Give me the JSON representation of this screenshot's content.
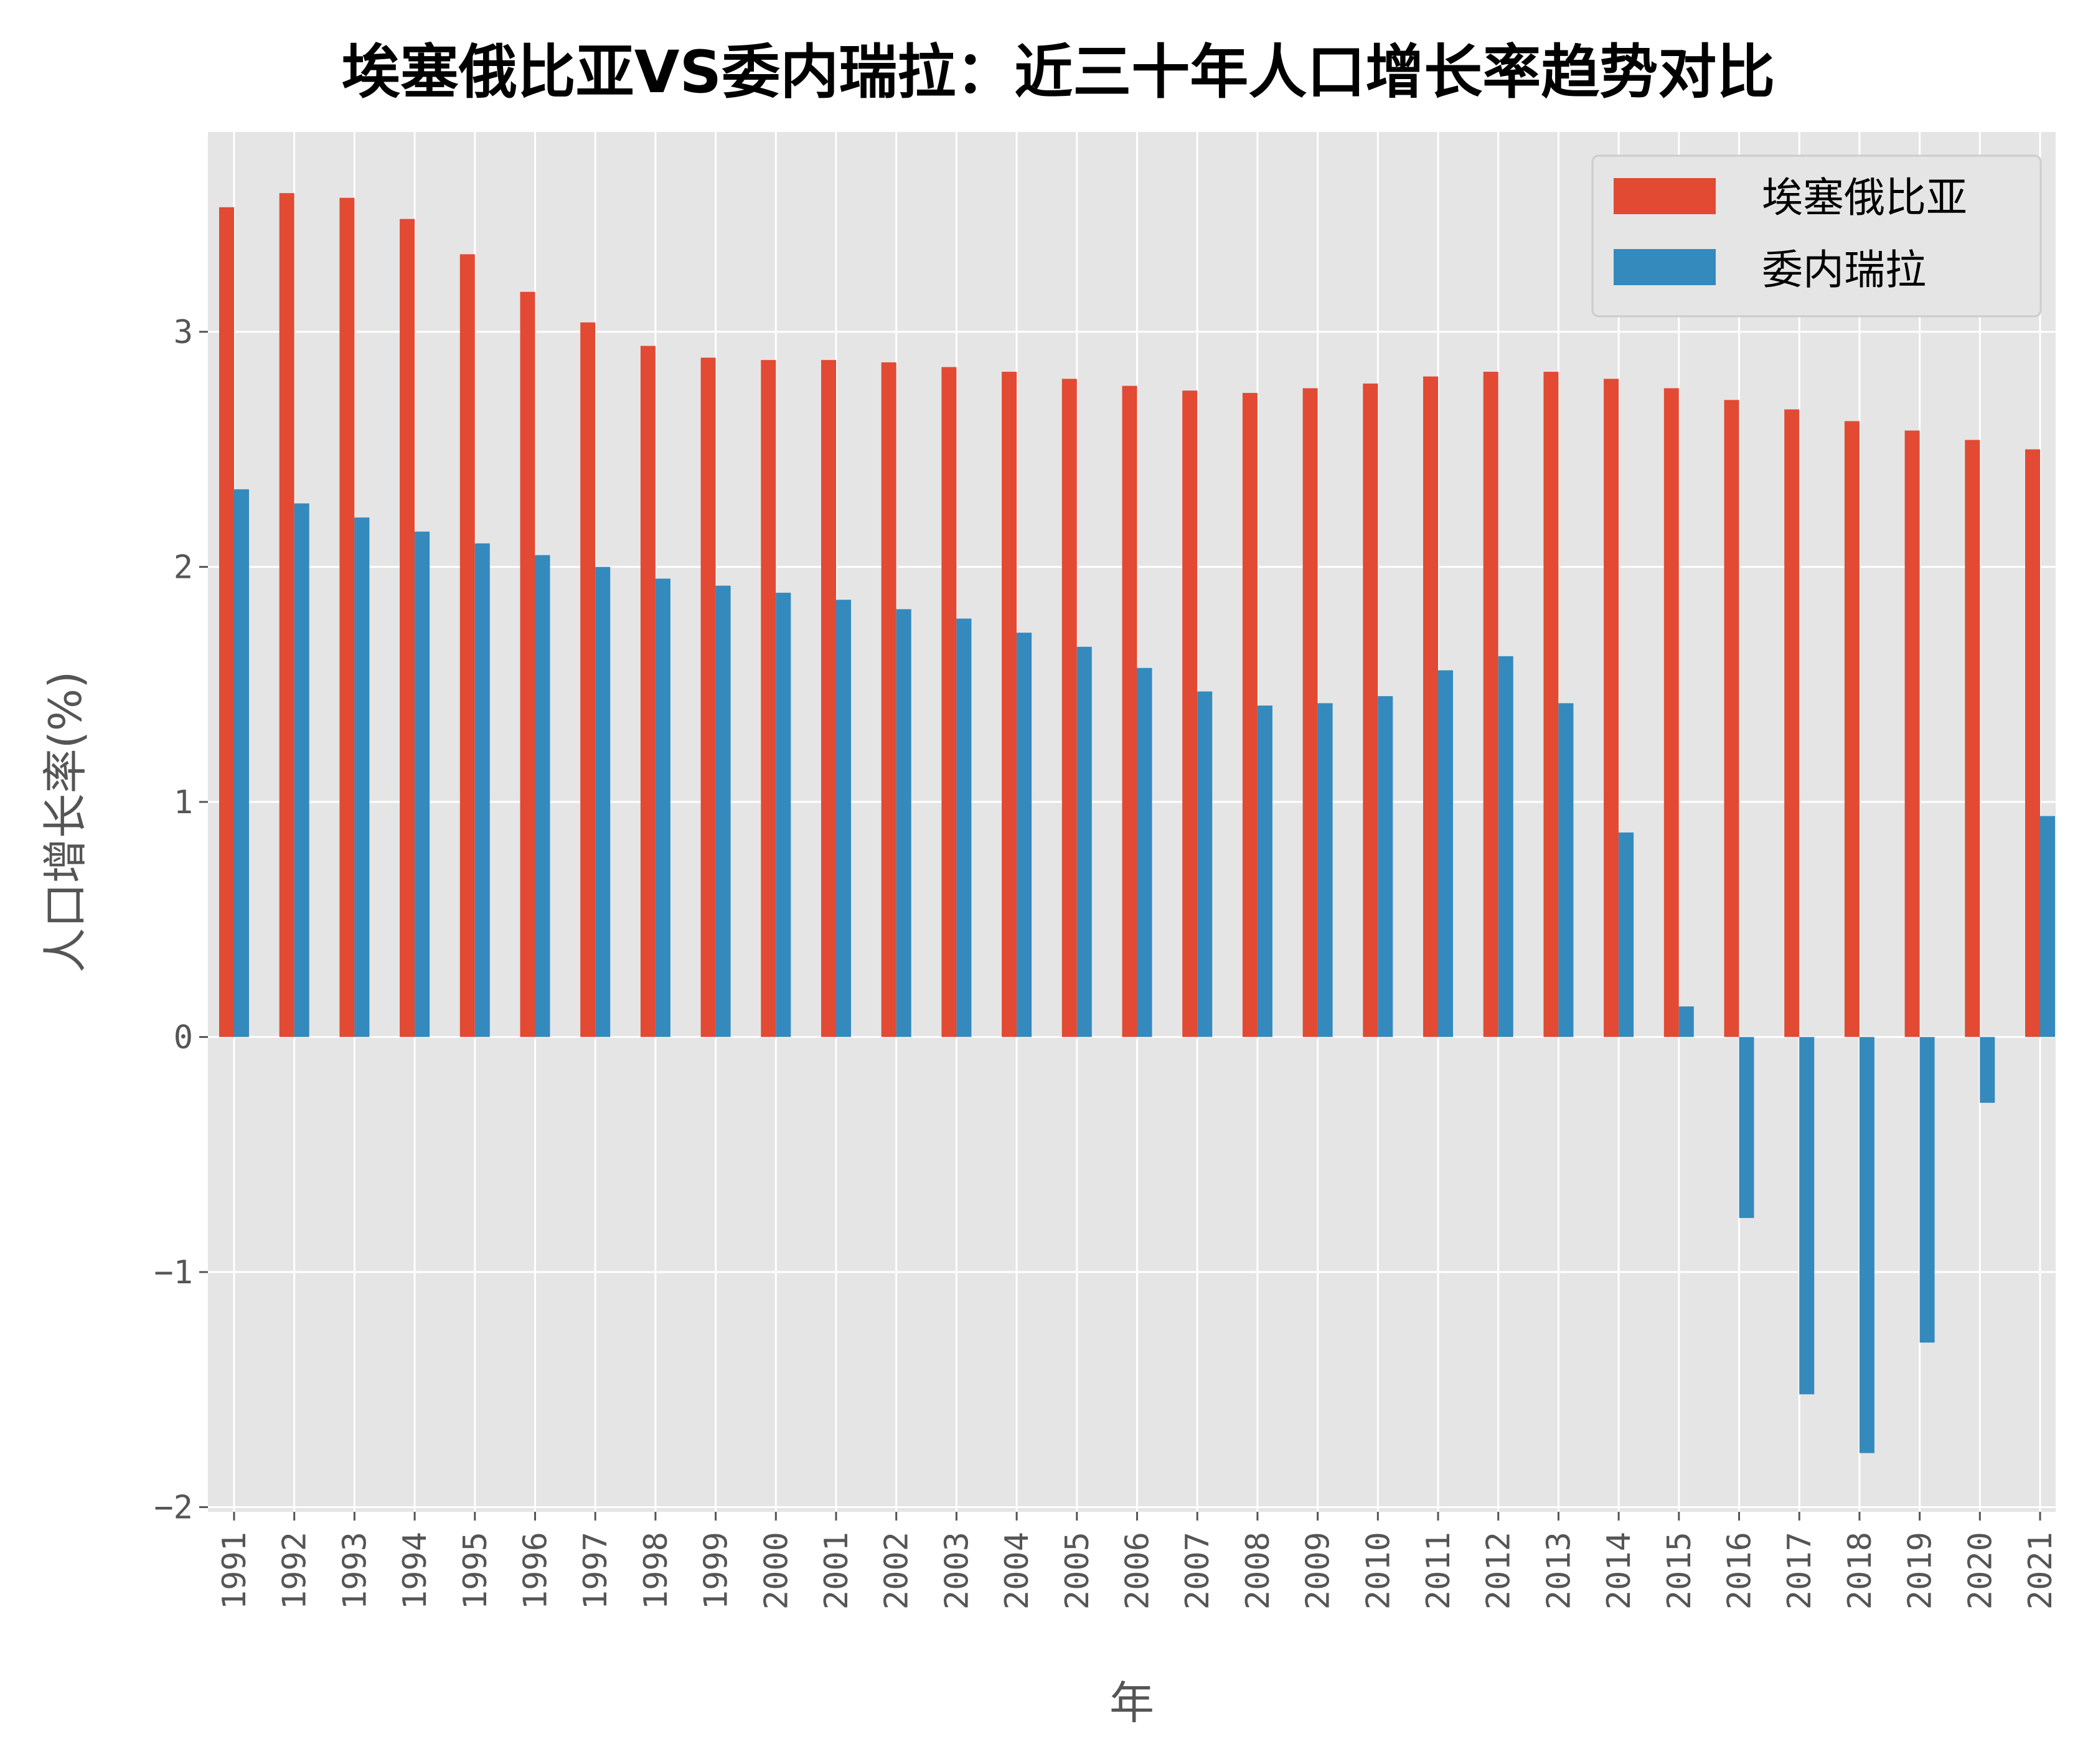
{
  "chart_data": {
    "type": "bar",
    "title": "埃塞俄比亚VS委内瑞拉：近三十年人口增长率趋势对比",
    "xlabel": "年",
    "ylabel": "人口增长率(%)",
    "ylim": [
      -2.02,
      3.85
    ],
    "yticks": [
      -2,
      -1,
      0,
      1,
      2,
      3
    ],
    "ytick_labels": [
      "−2",
      "−1",
      "0",
      "1",
      "2",
      "3"
    ],
    "grid": true,
    "legend_position": "top-right",
    "categories": [
      "1991",
      "1992",
      "1993",
      "1994",
      "1995",
      "1996",
      "1997",
      "1998",
      "1999",
      "2000",
      "2001",
      "2002",
      "2003",
      "2004",
      "2005",
      "2006",
      "2007",
      "2008",
      "2009",
      "2010",
      "2011",
      "2012",
      "2013",
      "2014",
      "2015",
      "2016",
      "2017",
      "2018",
      "2019",
      "2020",
      "2021"
    ],
    "series": [
      {
        "name": "埃塞俄比亚",
        "color": "#e24a33",
        "values": [
          3.53,
          3.59,
          3.57,
          3.48,
          3.33,
          3.17,
          3.04,
          2.94,
          2.89,
          2.88,
          2.88,
          2.87,
          2.85,
          2.83,
          2.8,
          2.77,
          2.75,
          2.74,
          2.76,
          2.78,
          2.81,
          2.83,
          2.83,
          2.8,
          2.76,
          2.71,
          2.67,
          2.62,
          2.58,
          2.54,
          2.5
        ]
      },
      {
        "name": "委内瑞拉",
        "color": "#348abd",
        "values": [
          2.33,
          2.27,
          2.21,
          2.15,
          2.1,
          2.05,
          2.0,
          1.95,
          1.92,
          1.89,
          1.86,
          1.82,
          1.78,
          1.72,
          1.66,
          1.57,
          1.47,
          1.41,
          1.42,
          1.45,
          1.56,
          1.62,
          1.42,
          0.87,
          0.13,
          -0.77,
          -1.52,
          -1.77,
          -1.3,
          -0.28,
          0.94
        ]
      }
    ]
  }
}
